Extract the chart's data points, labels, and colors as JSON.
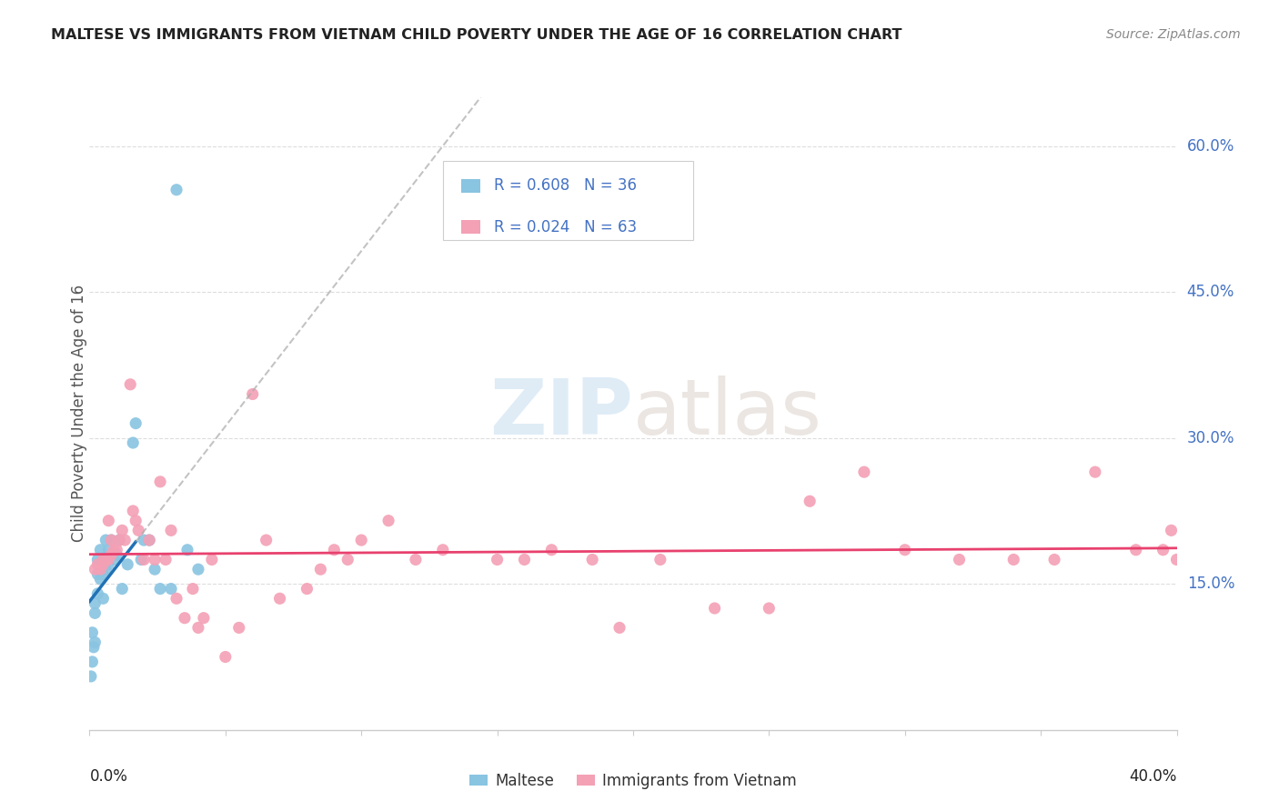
{
  "title": "MALTESE VS IMMIGRANTS FROM VIETNAM CHILD POVERTY UNDER THE AGE OF 16 CORRELATION CHART",
  "source": "Source: ZipAtlas.com",
  "ylabel": "Child Poverty Under the Age of 16",
  "watermark_zip": "ZIP",
  "watermark_atlas": "atlas",
  "legend_blue_text": "R = 0.608   N = 36",
  "legend_pink_text": "R = 0.024   N = 63",
  "maltese_color": "#89c4e1",
  "vietnam_color": "#f4a0b5",
  "maltese_line_color": "#2171b5",
  "vietnam_line_color": "#e8416e",
  "dashed_color": "#aaaaaa",
  "right_ytick_vals": [
    0.15,
    0.3,
    0.45,
    0.6
  ],
  "right_ytick_labels": [
    "15.0%",
    "30.0%",
    "45.0%",
    "60.0%"
  ],
  "xlim": [
    0.0,
    0.4
  ],
  "ylim": [
    0.0,
    0.65
  ],
  "maltese_x": [
    0.0005,
    0.001,
    0.001,
    0.0015,
    0.002,
    0.002,
    0.002,
    0.003,
    0.003,
    0.003,
    0.004,
    0.004,
    0.005,
    0.005,
    0.005,
    0.006,
    0.006,
    0.007,
    0.007,
    0.008,
    0.009,
    0.01,
    0.011,
    0.012,
    0.014,
    0.016,
    0.017,
    0.019,
    0.02,
    0.022,
    0.024,
    0.026,
    0.03,
    0.032,
    0.036,
    0.04
  ],
  "maltese_y": [
    0.055,
    0.07,
    0.1,
    0.085,
    0.09,
    0.12,
    0.13,
    0.14,
    0.16,
    0.175,
    0.155,
    0.185,
    0.135,
    0.16,
    0.175,
    0.165,
    0.195,
    0.17,
    0.185,
    0.195,
    0.175,
    0.18,
    0.195,
    0.145,
    0.17,
    0.295,
    0.315,
    0.175,
    0.195,
    0.195,
    0.165,
    0.145,
    0.145,
    0.555,
    0.185,
    0.165
  ],
  "vietnam_x": [
    0.002,
    0.003,
    0.004,
    0.005,
    0.005,
    0.006,
    0.007,
    0.007,
    0.008,
    0.008,
    0.009,
    0.01,
    0.011,
    0.012,
    0.013,
    0.015,
    0.016,
    0.017,
    0.018,
    0.02,
    0.022,
    0.024,
    0.026,
    0.028,
    0.03,
    0.032,
    0.035,
    0.038,
    0.04,
    0.042,
    0.045,
    0.05,
    0.055,
    0.06,
    0.065,
    0.07,
    0.08,
    0.085,
    0.09,
    0.095,
    0.1,
    0.11,
    0.12,
    0.13,
    0.15,
    0.16,
    0.17,
    0.185,
    0.195,
    0.21,
    0.23,
    0.25,
    0.265,
    0.285,
    0.3,
    0.32,
    0.34,
    0.355,
    0.37,
    0.385,
    0.395,
    0.398,
    0.4
  ],
  "vietnam_y": [
    0.165,
    0.17,
    0.165,
    0.17,
    0.175,
    0.175,
    0.175,
    0.215,
    0.18,
    0.195,
    0.185,
    0.185,
    0.195,
    0.205,
    0.195,
    0.355,
    0.225,
    0.215,
    0.205,
    0.175,
    0.195,
    0.175,
    0.255,
    0.175,
    0.205,
    0.135,
    0.115,
    0.145,
    0.105,
    0.115,
    0.175,
    0.075,
    0.105,
    0.345,
    0.195,
    0.135,
    0.145,
    0.165,
    0.185,
    0.175,
    0.195,
    0.215,
    0.175,
    0.185,
    0.175,
    0.175,
    0.185,
    0.175,
    0.105,
    0.175,
    0.125,
    0.125,
    0.235,
    0.265,
    0.185,
    0.175,
    0.175,
    0.175,
    0.265,
    0.185,
    0.185,
    0.205,
    0.175
  ],
  "grid_color": "#dddddd",
  "title_color": "#222222",
  "source_color": "#888888",
  "ylabel_color": "#555555",
  "right_tick_color": "#4472c4",
  "bottom_label_color": "#222222"
}
